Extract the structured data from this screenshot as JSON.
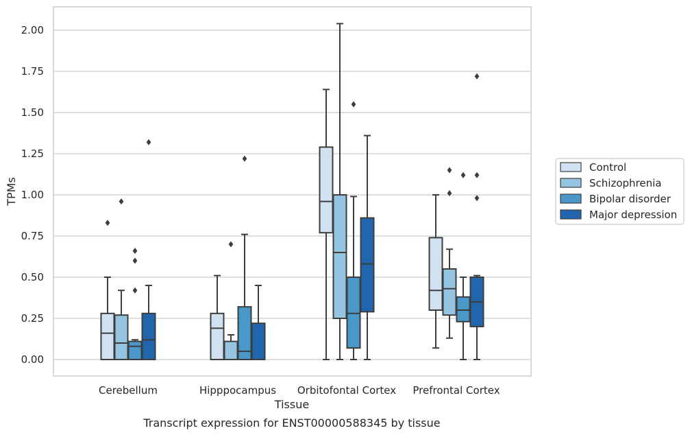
{
  "caption": "Transcript expression for ENST00000588345 by tissue",
  "chart_data": {
    "type": "box",
    "title": "",
    "xlabel": "Tissue",
    "ylabel": "TPMs",
    "ylim": [
      -0.1,
      2.15
    ],
    "yticks": [
      "0.00",
      "0.25",
      "0.50",
      "0.75",
      "1.00",
      "1.25",
      "1.50",
      "1.75",
      "2.00"
    ],
    "grid": "horizontal",
    "legend_position": "right",
    "categories": [
      "Cerebellum",
      "Hipppocampus",
      "Orbitofontal Cortex",
      "Prefrontal Cortex"
    ],
    "series": [
      {
        "name": "Control",
        "color": "#d0e1f2",
        "boxes": [
          {
            "whislo": 0.0,
            "q1": 0.0,
            "med": 0.16,
            "q3": 0.28,
            "whishi": 0.5,
            "fliers": [
              0.83
            ]
          },
          {
            "whislo": 0.0,
            "q1": 0.0,
            "med": 0.19,
            "q3": 0.28,
            "whishi": 0.51,
            "fliers": []
          },
          {
            "whislo": 0.0,
            "q1": 0.77,
            "med": 0.96,
            "q3": 1.29,
            "whishi": 1.64,
            "fliers": []
          },
          {
            "whislo": 0.07,
            "q1": 0.3,
            "med": 0.42,
            "q3": 0.74,
            "whishi": 1.0,
            "fliers": []
          }
        ]
      },
      {
        "name": "Schizophrenia",
        "color": "#94c4df",
        "boxes": [
          {
            "whislo": 0.0,
            "q1": 0.0,
            "med": 0.1,
            "q3": 0.27,
            "whishi": 0.42,
            "fliers": [
              0.96
            ]
          },
          {
            "whislo": 0.0,
            "q1": 0.0,
            "med": 0.0,
            "q3": 0.11,
            "whishi": 0.15,
            "fliers": [
              0.7
            ]
          },
          {
            "whislo": 0.0,
            "q1": 0.25,
            "med": 0.65,
            "q3": 1.0,
            "whishi": 2.04,
            "fliers": []
          },
          {
            "whislo": 0.13,
            "q1": 0.27,
            "med": 0.43,
            "q3": 0.55,
            "whishi": 0.67,
            "fliers": [
              1.01,
              1.15
            ]
          }
        ]
      },
      {
        "name": "Bipolar disorder",
        "color": "#4a98c9",
        "boxes": [
          {
            "whislo": 0.0,
            "q1": 0.0,
            "med": 0.08,
            "q3": 0.11,
            "whishi": 0.12,
            "fliers": [
              0.42,
              0.6,
              0.66
            ]
          },
          {
            "whislo": 0.0,
            "q1": 0.0,
            "med": 0.05,
            "q3": 0.32,
            "whishi": 0.76,
            "fliers": [
              1.22
            ]
          },
          {
            "whislo": 0.0,
            "q1": 0.07,
            "med": 0.28,
            "q3": 0.5,
            "whishi": 0.99,
            "fliers": [
              1.55
            ]
          },
          {
            "whislo": 0.0,
            "q1": 0.23,
            "med": 0.3,
            "q3": 0.38,
            "whishi": 0.5,
            "fliers": [
              1.12
            ]
          }
        ]
      },
      {
        "name": "Major depression",
        "color": "#2166ac",
        "boxes": [
          {
            "whislo": 0.0,
            "q1": 0.0,
            "med": 0.12,
            "q3": 0.28,
            "whishi": 0.45,
            "fliers": [
              1.32
            ]
          },
          {
            "whislo": 0.0,
            "q1": 0.0,
            "med": 0.0,
            "q3": 0.22,
            "whishi": 0.45,
            "fliers": []
          },
          {
            "whislo": 0.0,
            "q1": 0.29,
            "med": 0.58,
            "q3": 0.86,
            "whishi": 1.36,
            "fliers": []
          },
          {
            "whislo": 0.0,
            "q1": 0.2,
            "med": 0.35,
            "q3": 0.5,
            "whishi": 0.51,
            "fliers": [
              0.98,
              1.12,
              1.72
            ]
          }
        ]
      }
    ]
  }
}
